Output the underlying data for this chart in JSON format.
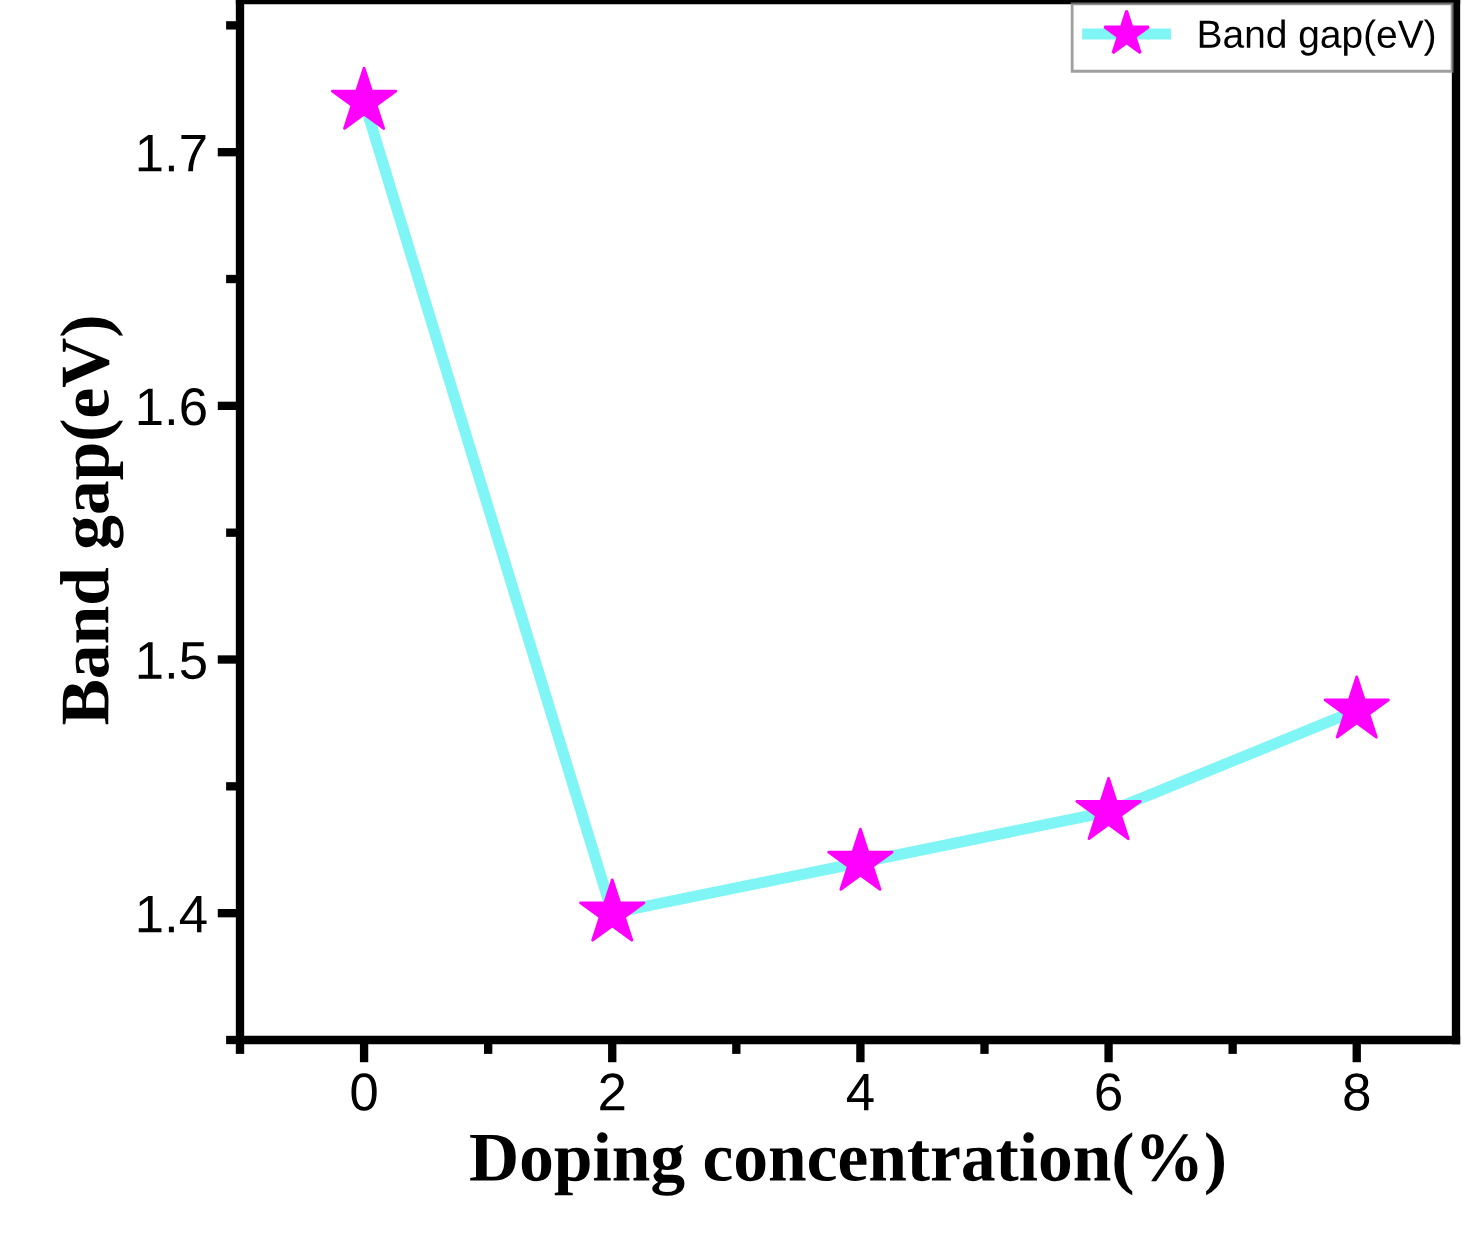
{
  "chart_data": {
    "type": "line",
    "xlabel": "Doping concentration(%)",
    "ylabel": "Band gap(eV)",
    "x": [
      0,
      2,
      4,
      6,
      8
    ],
    "series": [
      {
        "name": "Band gap(eV)",
        "color": "#80f5f5",
        "values": [
          1.72,
          1.4,
          1.42,
          1.44,
          1.48
        ],
        "colors": [
          "#ff00ff",
          "#ff00ff",
          "#ff00ff",
          "#ff00ff",
          "#ff00ff"
        ]
      }
    ],
    "marker": "star",
    "xlim": [
      -1,
      8.8
    ],
    "ylim": [
      1.35,
      1.76
    ],
    "xticks": [
      0,
      2,
      4,
      6,
      8
    ],
    "yticks": [
      1.4,
      1.5,
      1.6,
      1.7
    ],
    "legend": "top right",
    "grid": false
  }
}
